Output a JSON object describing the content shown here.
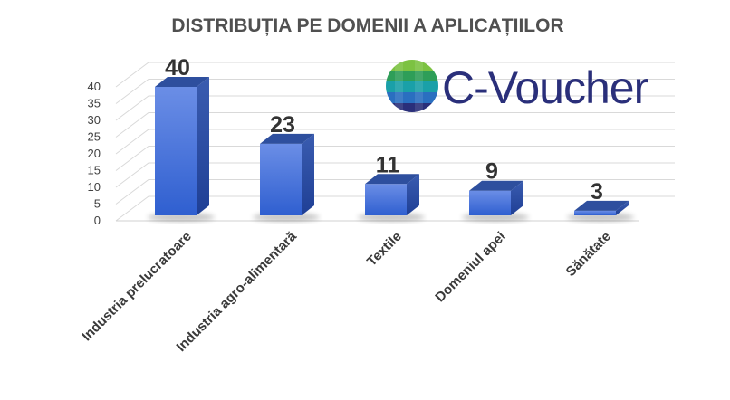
{
  "chart_data": {
    "type": "bar",
    "title": "DISTRIBUȚIA PE DOMENII A APLICAȚIILOR",
    "categories": [
      "Industria prelucratoare",
      "Industria agro-alimentară",
      "Textile",
      "Domeniul apei",
      "Sănătate"
    ],
    "values": [
      40,
      23,
      11,
      9,
      3
    ],
    "ylim": [
      0,
      40
    ],
    "yticks": [
      0,
      5,
      10,
      15,
      20,
      25,
      30,
      35,
      40
    ],
    "grid": true,
    "style": "3d-column",
    "bar_color": "#3f6fd8"
  },
  "logo": {
    "text": "C-Voucher",
    "icon": "c-voucher-globe-icon"
  }
}
